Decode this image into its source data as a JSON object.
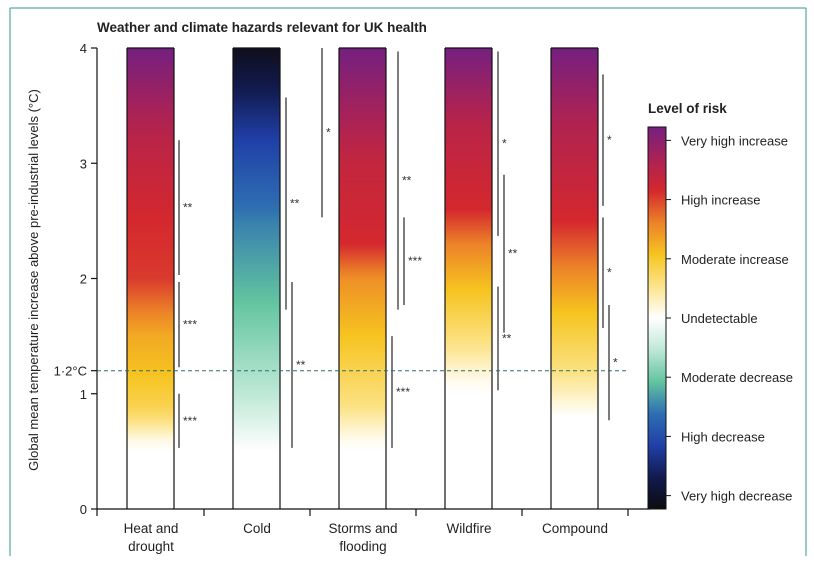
{
  "chart_data": {
    "type": "heatmap",
    "title": "Weather and climate hazards relevant for UK health",
    "ylabel": "Global mean temperature increase above pre-industrial levels (°C)",
    "xlabel": "",
    "ylim": [
      0,
      4
    ],
    "yticks": [
      {
        "value": 0,
        "label": "0"
      },
      {
        "value": 1,
        "label": "1"
      },
      {
        "value": 2,
        "label": "2"
      },
      {
        "value": 3,
        "label": "3"
      },
      {
        "value": 4,
        "label": "4"
      }
    ],
    "reference_line": {
      "value": 1.2,
      "label": "1·2°C",
      "style": "dashed"
    },
    "categories": [
      {
        "line1": "Heat and",
        "line2": "drought"
      },
      {
        "line1": "Cold",
        "line2": ""
      },
      {
        "line1": "Storms and",
        "line2": "flooding"
      },
      {
        "line1": "Wildfire",
        "line2": ""
      },
      {
        "line1": "Compound",
        "line2": ""
      }
    ],
    "legend": {
      "title": "Level of risk",
      "scale_min": -3,
      "scale_max": 3,
      "levels": [
        {
          "value": 3,
          "label": "Very high increase"
        },
        {
          "value": 2,
          "label": "High increase"
        },
        {
          "value": 1,
          "label": "Moderate increase"
        },
        {
          "value": 0,
          "label": "Undetectable"
        },
        {
          "value": -1,
          "label": "Moderate decrease"
        },
        {
          "value": -2,
          "label": "High decrease"
        },
        {
          "value": -3,
          "label": "Very high decrease"
        }
      ]
    },
    "series": [
      {
        "risk_profile": [
          [
            0,
            0
          ],
          [
            0.55,
            0
          ],
          [
            0.85,
            0.75
          ],
          [
            1.15,
            1.0
          ],
          [
            1.5,
            1.2
          ],
          [
            2.0,
            1.9
          ],
          [
            2.5,
            2.0
          ],
          [
            3.2,
            2.3
          ],
          [
            4.0,
            3.0
          ]
        ]
      },
      {
        "risk_profile": [
          [
            0,
            0
          ],
          [
            0.5,
            0
          ],
          [
            1.0,
            -0.5
          ],
          [
            1.8,
            -1.0
          ],
          [
            2.5,
            -1.4
          ],
          [
            3.2,
            -2.0
          ],
          [
            4.0,
            -2.9
          ]
        ]
      },
      {
        "risk_profile": [
          [
            0,
            0
          ],
          [
            0.55,
            0
          ],
          [
            0.9,
            0.55
          ],
          [
            1.5,
            1.0
          ],
          [
            2.0,
            1.4
          ],
          [
            2.3,
            2.0
          ],
          [
            3.0,
            2.2
          ],
          [
            4.0,
            3.0
          ]
        ]
      },
      {
        "risk_profile": [
          [
            0,
            0
          ],
          [
            1.05,
            0
          ],
          [
            1.45,
            0.55
          ],
          [
            1.9,
            1.0
          ],
          [
            2.3,
            1.5
          ],
          [
            2.6,
            2.0
          ],
          [
            3.3,
            2.3
          ],
          [
            4.0,
            3.0
          ]
        ]
      },
      {
        "risk_profile": [
          [
            0,
            0
          ],
          [
            0.8,
            0
          ],
          [
            1.2,
            0.55
          ],
          [
            1.7,
            1.0
          ],
          [
            2.1,
            1.5
          ],
          [
            2.5,
            2.0
          ],
          [
            3.3,
            2.4
          ],
          [
            4.0,
            3.0
          ]
        ]
      }
    ],
    "confidence_ranges": [
      [
        {
          "from": 2.03,
          "to": 3.2,
          "label": "**"
        },
        {
          "from": 1.23,
          "to": 1.97,
          "label": "***"
        },
        {
          "from": 0.53,
          "to": 1.0,
          "label": "***"
        }
      ],
      [
        {
          "from": 1.73,
          "to": 3.57,
          "label": "**"
        },
        {
          "from": 0.53,
          "to": 1.97,
          "label": "**"
        }
      ],
      [
        {
          "from": 2.53,
          "to": 4.0,
          "label": "*"
        },
        {
          "from": 1.73,
          "to": 3.97,
          "label": "**"
        },
        {
          "from": 1.77,
          "to": 2.53,
          "label": "***"
        },
        {
          "from": 0.53,
          "to": 1.5,
          "label": "***"
        }
      ],
      [
        {
          "from": 2.37,
          "to": 3.97,
          "label": "*"
        },
        {
          "from": 1.53,
          "to": 2.9,
          "label": "**"
        },
        {
          "from": 1.03,
          "to": 1.93,
          "label": "**"
        }
      ],
      [
        {
          "from": 2.63,
          "to": 3.77,
          "label": "*"
        },
        {
          "from": 1.57,
          "to": 2.53,
          "label": "*"
        },
        {
          "from": 0.77,
          "to": 1.77,
          "label": "*"
        }
      ]
    ]
  }
}
